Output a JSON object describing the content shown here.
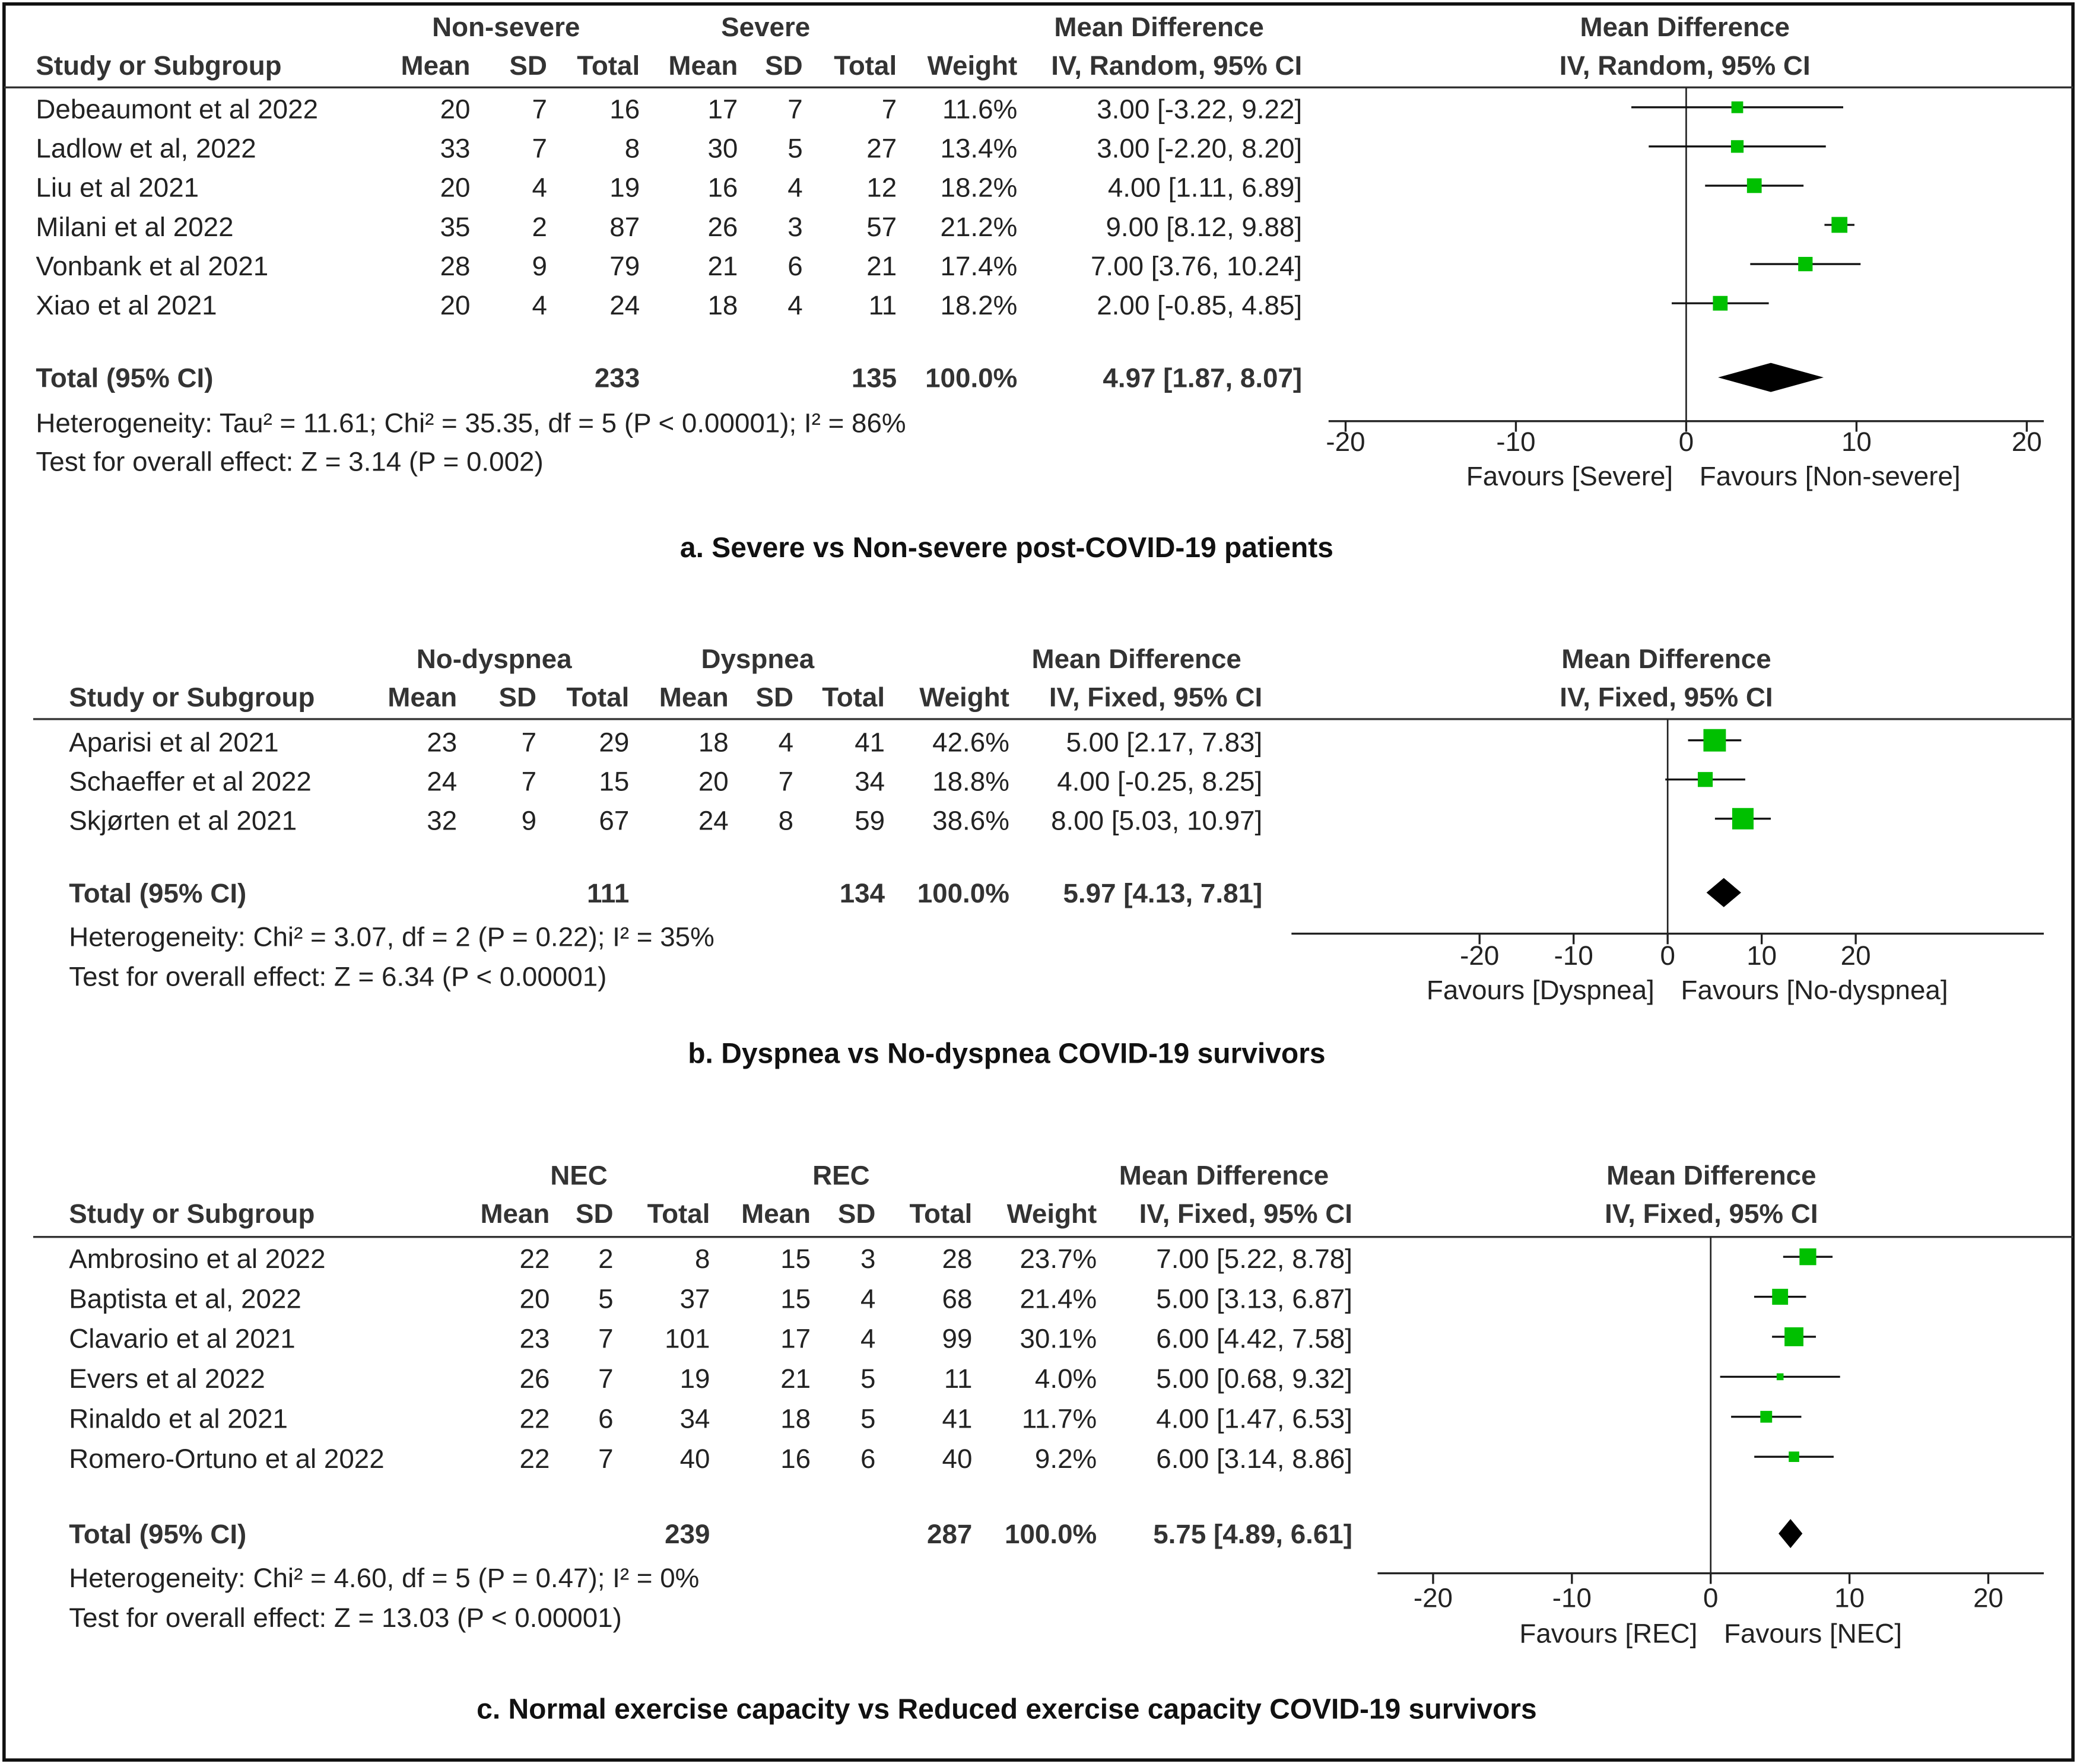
{
  "chart_data": [
    {
      "type": "forest",
      "groups": [
        "Non-severe",
        "Severe"
      ],
      "effect_header": "Mean Difference",
      "plot_header": "Mean Difference",
      "columns": [
        "Study or Subgroup",
        "Mean",
        "SD",
        "Total",
        "Mean",
        "SD",
        "Total",
        "Weight",
        "IV, Random, 95% CI"
      ],
      "plot_subheader": "IV, Random, 95% CI",
      "studies": [
        "Debeaumont et al 2022",
        "Ladlow et al, 2022",
        "Liu et al 2021",
        "Milani et al 2022",
        "Vonbank et al 2021",
        "Xiao et al 2021"
      ],
      "group1": {
        "mean": [
          20,
          33,
          20,
          35,
          28,
          20
        ],
        "sd": [
          7,
          7,
          4,
          2,
          9,
          4
        ],
        "total": [
          16,
          8,
          19,
          87,
          79,
          24
        ]
      },
      "group2": {
        "mean": [
          17,
          30,
          16,
          26,
          21,
          18
        ],
        "sd": [
          7,
          5,
          4,
          3,
          6,
          4
        ],
        "total": [
          7,
          27,
          12,
          57,
          21,
          11
        ]
      },
      "weights": [
        11.6,
        13.4,
        18.2,
        21.2,
        17.4,
        18.2
      ],
      "weight_labels": [
        "11.6%",
        "13.4%",
        "18.2%",
        "21.2%",
        "17.4%",
        "18.2%"
      ],
      "values": [
        3.0,
        3.0,
        4.0,
        9.0,
        7.0,
        2.0
      ],
      "ci_lower": [
        -3.22,
        -2.2,
        1.11,
        8.12,
        3.76,
        -0.85
      ],
      "ci_upper": [
        9.22,
        8.2,
        6.89,
        9.88,
        10.24,
        4.85
      ],
      "value_labels": [
        "3.00 [-3.22, 9.22]",
        "3.00 [-2.20, 8.20]",
        "4.00 [1.11, 6.89]",
        "9.00 [8.12, 9.88]",
        "7.00 [3.76, 10.24]",
        "2.00 [-0.85, 4.85]"
      ],
      "total": {
        "label": "Total (95% CI)",
        "total1": 233,
        "total2": 135,
        "weight_label": "100.0%",
        "value": 4.97,
        "ci_lower": 1.87,
        "ci_upper": 8.07,
        "value_label": "4.97 [1.87, 8.07]"
      },
      "heterogeneity": "Heterogeneity: Tau² = 11.61; Chi² = 35.35, df = 5 (P < 0.00001); I² = 86%",
      "overall_effect": "Test for overall effect: Z = 3.14 (P = 0.002)",
      "xlim": [
        -21,
        21
      ],
      "xticks": [
        -20,
        -10,
        0,
        10,
        20
      ],
      "favours": [
        "Favours [Severe]",
        "Favours [Non-severe]"
      ],
      "color": "#00c000",
      "caption": "a. Severe vs Non-severe post-COVID-19 patients"
    },
    {
      "type": "forest",
      "groups": [
        "No-dyspnea",
        "Dyspnea"
      ],
      "effect_header": "Mean Difference",
      "plot_header": "Mean Difference",
      "columns": [
        "Study or Subgroup",
        "Mean",
        "SD",
        "Total",
        "Mean",
        "SD",
        "Total",
        "Weight",
        "IV, Fixed, 95% CI"
      ],
      "plot_subheader": "IV, Fixed, 95% CI",
      "studies": [
        "Aparisi et al 2021",
        "Schaeffer et al 2022",
        "Skjørten et al 2021"
      ],
      "group1": {
        "mean": [
          23,
          24,
          32
        ],
        "sd": [
          7,
          7,
          9
        ],
        "total": [
          29,
          15,
          67
        ]
      },
      "group2": {
        "mean": [
          18,
          20,
          24
        ],
        "sd": [
          4,
          7,
          8
        ],
        "total": [
          41,
          34,
          59
        ]
      },
      "weights": [
        42.6,
        18.8,
        38.6
      ],
      "weight_labels": [
        "42.6%",
        "18.8%",
        "38.6%"
      ],
      "values": [
        5.0,
        4.0,
        8.0
      ],
      "ci_lower": [
        2.17,
        -0.25,
        5.03
      ],
      "ci_upper": [
        7.83,
        8.25,
        10.97
      ],
      "value_labels": [
        "5.00 [2.17, 7.83]",
        "4.00 [-0.25, 8.25]",
        "8.00 [5.03, 10.97]"
      ],
      "total": {
        "label": "Total (95% CI)",
        "total1": 111,
        "total2": 134,
        "weight_label": "100.0%",
        "value": 5.97,
        "ci_lower": 4.13,
        "ci_upper": 7.81,
        "value_label": "5.97 [4.13, 7.81]"
      },
      "heterogeneity": "Heterogeneity: Chi² = 3.07, df = 2 (P = 0.22); I² = 35%",
      "overall_effect": "Test for overall effect: Z = 6.34 (P < 0.00001)",
      "xlim": [
        -40,
        40
      ],
      "xticks": [
        -20,
        -10,
        0,
        10,
        20
      ],
      "favours": [
        "Favours [Dyspnea]",
        "Favours [No-dyspnea]"
      ],
      "color": "#00c000",
      "caption": "b. Dyspnea vs No-dyspnea  COVID-19 survivors"
    },
    {
      "type": "forest",
      "groups": [
        "NEC",
        "REC"
      ],
      "effect_header": "Mean Difference",
      "plot_header": "Mean Difference",
      "columns": [
        "Study or Subgroup",
        "Mean",
        "SD",
        "Total",
        "Mean",
        "SD",
        "Total",
        "Weight",
        "IV, Fixed, 95% CI"
      ],
      "plot_subheader": "IV, Fixed, 95% CI",
      "studies": [
        "Ambrosino et al 2022",
        "Baptista et al, 2022",
        "Clavario et al 2021",
        "Evers et al 2022",
        "Rinaldo et al 2021",
        "Romero-Ortuno et al 2022"
      ],
      "group1": {
        "mean": [
          22,
          20,
          23,
          26,
          22,
          22
        ],
        "sd": [
          2,
          5,
          7,
          7,
          6,
          7
        ],
        "total": [
          8,
          37,
          101,
          19,
          34,
          40
        ]
      },
      "group2": {
        "mean": [
          15,
          15,
          17,
          21,
          18,
          16
        ],
        "sd": [
          3,
          4,
          4,
          5,
          5,
          6
        ],
        "total": [
          28,
          68,
          99,
          11,
          41,
          40
        ]
      },
      "weights": [
        23.7,
        21.4,
        30.1,
        4.0,
        11.7,
        9.2
      ],
      "weight_labels": [
        "23.7%",
        "21.4%",
        "30.1%",
        "4.0%",
        "11.7%",
        "9.2%"
      ],
      "values": [
        7.0,
        5.0,
        6.0,
        5.0,
        4.0,
        6.0
      ],
      "ci_lower": [
        5.22,
        3.13,
        4.42,
        0.68,
        1.47,
        3.14
      ],
      "ci_upper": [
        8.78,
        6.87,
        7.58,
        9.32,
        6.53,
        8.86
      ],
      "value_labels": [
        "7.00 [5.22, 8.78]",
        "5.00 [3.13, 6.87]",
        "6.00 [4.42, 7.58]",
        "5.00 [0.68, 9.32]",
        "4.00 [1.47, 6.53]",
        "6.00 [3.14, 8.86]"
      ],
      "total": {
        "label": "Total (95% CI)",
        "total1": 239,
        "total2": 287,
        "weight_label": "100.0%",
        "value": 5.75,
        "ci_lower": 4.89,
        "ci_upper": 6.61,
        "value_label": "5.75 [4.89, 6.61]"
      },
      "heterogeneity": "Heterogeneity: Chi² = 4.60, df = 5 (P = 0.47); I² = 0%",
      "overall_effect": "Test for overall effect: Z = 13.03 (P < 0.00001)",
      "xlim": [
        -24,
        24
      ],
      "xticks": [
        -20,
        -10,
        0,
        10,
        20
      ],
      "favours": [
        "Favours [REC]",
        "Favours [NEC]"
      ],
      "color": "#00c000",
      "caption": "c. Normal exercise capacity  vs Reduced exercise capacity  COVID-19 survivors"
    }
  ]
}
